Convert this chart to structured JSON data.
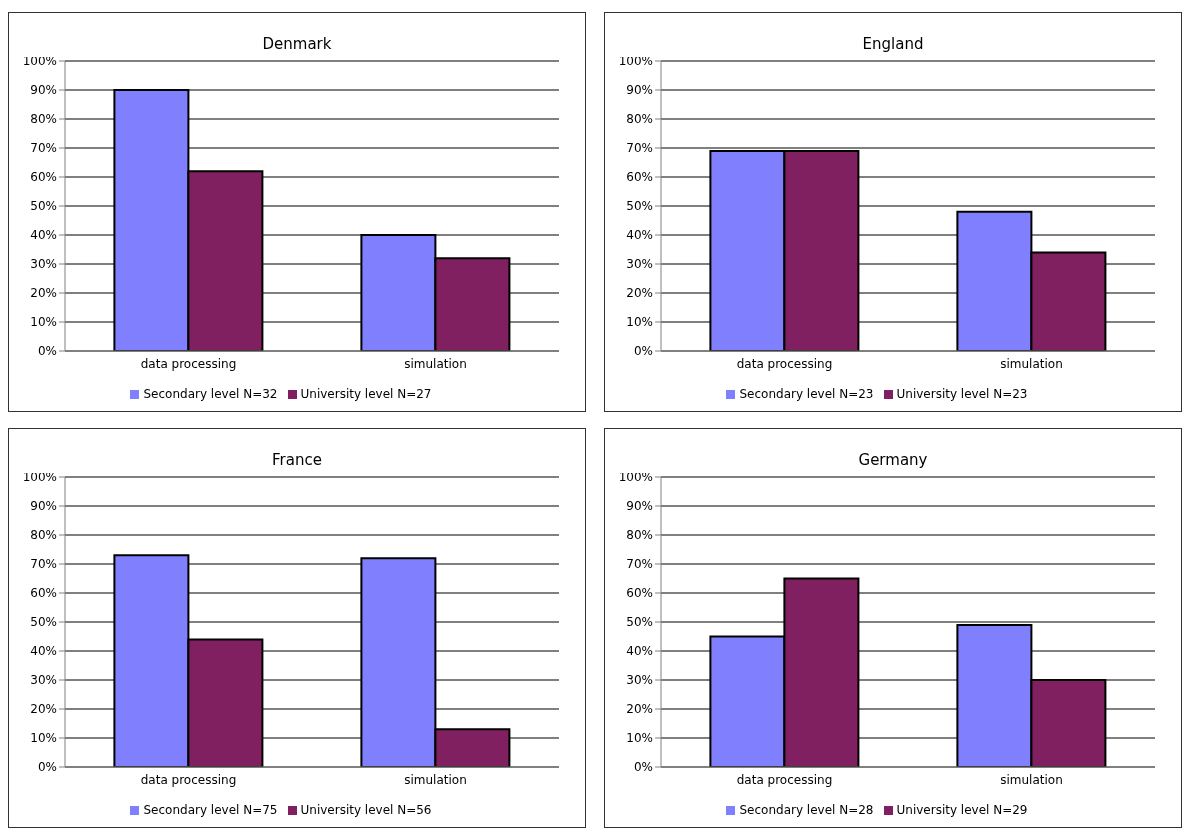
{
  "chart_data": [
    {
      "type": "bar",
      "title": "Denmark",
      "categories": [
        "data processing",
        "simulation"
      ],
      "series": [
        {
          "name": "Secondary level N=32",
          "color": "#8080ff",
          "values": [
            90,
            40
          ]
        },
        {
          "name": "University level N=27",
          "color": "#802060",
          "values": [
            62,
            32
          ]
        }
      ],
      "ylim": [
        0,
        100
      ],
      "yticks": [
        {
          "value": 0,
          "label": "0%"
        },
        {
          "value": 10,
          "label": "10%"
        },
        {
          "value": 20,
          "label": "20%"
        },
        {
          "value": 30,
          "label": "30%"
        },
        {
          "value": 40,
          "label": "40%"
        },
        {
          "value": 50,
          "label": "50%"
        },
        {
          "value": 60,
          "label": "60%"
        },
        {
          "value": 70,
          "label": "70%"
        },
        {
          "value": 80,
          "label": "80%"
        },
        {
          "value": 90,
          "label": "90%"
        },
        {
          "value": 100,
          "label": "100%"
        }
      ],
      "grid": "y",
      "legend": "bottom"
    },
    {
      "type": "bar",
      "title": "England",
      "categories": [
        "data processing",
        "simulation"
      ],
      "series": [
        {
          "name": "Secondary level N=23",
          "color": "#8080ff",
          "values": [
            69,
            48
          ]
        },
        {
          "name": "University level N=23",
          "color": "#802060",
          "values": [
            69,
            34
          ]
        }
      ],
      "ylim": [
        0,
        100
      ],
      "yticks": [
        {
          "value": 0,
          "label": "0%"
        },
        {
          "value": 10,
          "label": "10%"
        },
        {
          "value": 20,
          "label": "20%"
        },
        {
          "value": 30,
          "label": "30%"
        },
        {
          "value": 40,
          "label": "40%"
        },
        {
          "value": 50,
          "label": "50%"
        },
        {
          "value": 60,
          "label": "60%"
        },
        {
          "value": 70,
          "label": "70%"
        },
        {
          "value": 80,
          "label": "80%"
        },
        {
          "value": 90,
          "label": "90%"
        },
        {
          "value": 100,
          "label": "100%"
        }
      ],
      "grid": "y",
      "legend": "bottom"
    },
    {
      "type": "bar",
      "title": "France",
      "categories": [
        "data processing",
        "simulation"
      ],
      "series": [
        {
          "name": "Secondary level N=75",
          "color": "#8080ff",
          "values": [
            73,
            72
          ]
        },
        {
          "name": "University level N=56",
          "color": "#802060",
          "values": [
            44,
            13
          ]
        }
      ],
      "ylim": [
        0,
        100
      ],
      "yticks": [
        {
          "value": 0,
          "label": "0%"
        },
        {
          "value": 10,
          "label": "10%"
        },
        {
          "value": 20,
          "label": "20%"
        },
        {
          "value": 30,
          "label": "30%"
        },
        {
          "value": 40,
          "label": "40%"
        },
        {
          "value": 50,
          "label": "50%"
        },
        {
          "value": 60,
          "label": "60%"
        },
        {
          "value": 70,
          "label": "70%"
        },
        {
          "value": 80,
          "label": "80%"
        },
        {
          "value": 90,
          "label": "90%"
        },
        {
          "value": 100,
          "label": "100%"
        }
      ],
      "grid": "y",
      "legend": "bottom"
    },
    {
      "type": "bar",
      "title": "Germany",
      "categories": [
        "data processing",
        "simulation"
      ],
      "series": [
        {
          "name": "Secondary level N=28",
          "color": "#8080ff",
          "values": [
            45,
            49
          ]
        },
        {
          "name": "University level N=29",
          "color": "#802060",
          "values": [
            65,
            30
          ]
        }
      ],
      "ylim": [
        0,
        100
      ],
      "yticks": [
        {
          "value": 0,
          "label": "0%"
        },
        {
          "value": 10,
          "label": "10%"
        },
        {
          "value": 20,
          "label": "20%"
        },
        {
          "value": 30,
          "label": "30%"
        },
        {
          "value": 40,
          "label": "40%"
        },
        {
          "value": 50,
          "label": "50%"
        },
        {
          "value": 60,
          "label": "60%"
        },
        {
          "value": 70,
          "label": "70%"
        },
        {
          "value": 80,
          "label": "80%"
        },
        {
          "value": 90,
          "label": "90%"
        },
        {
          "value": 100,
          "label": "100%"
        }
      ],
      "grid": "y",
      "legend": "bottom"
    }
  ]
}
